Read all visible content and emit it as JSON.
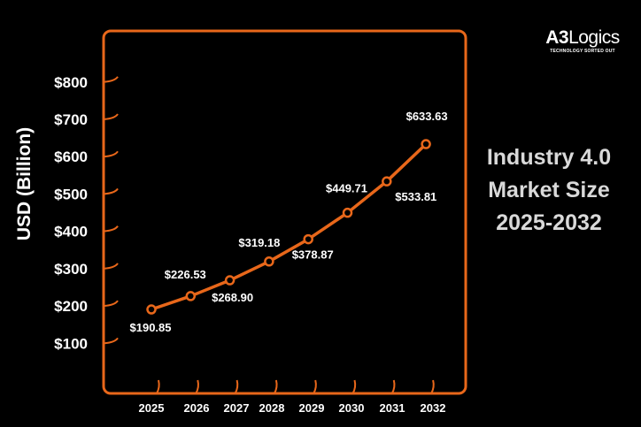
{
  "logo": {
    "brand_bold": "A3",
    "brand_rest": "Logics",
    "tagline": "TECHNOLOGY SORTED OUT"
  },
  "side_title": {
    "line1": "Industry 4.0",
    "line2": "Market Size",
    "line3": "2025-2032"
  },
  "colors": {
    "background": "#000000",
    "accent": "#e8671a",
    "text": "#ffffff",
    "title_text": "#d9d9d9"
  },
  "chart_data": {
    "type": "line",
    "ylabel": "USD (Billion)",
    "xlabel": "",
    "categories": [
      "2025",
      "2026",
      "2027",
      "2028",
      "2029",
      "2030",
      "2031",
      "2032"
    ],
    "y_ticks": [
      100,
      200,
      300,
      400,
      500,
      600,
      700,
      800
    ],
    "y_tick_labels": [
      "$100",
      "$200",
      "$300",
      "$400",
      "$500",
      "$600",
      "$700",
      "$800"
    ],
    "ylim": [
      0,
      800
    ],
    "grid": false,
    "series": [
      {
        "values": [
          190.85,
          226.53,
          268.9,
          319.18,
          378.87,
          449.71,
          533.81,
          633.63
        ],
        "labels": [
          "$190.85",
          "$226.53",
          "$268.90",
          "$319.18",
          "$378.87",
          "$449.71",
          "$533.81",
          "$633.63"
        ]
      }
    ]
  }
}
